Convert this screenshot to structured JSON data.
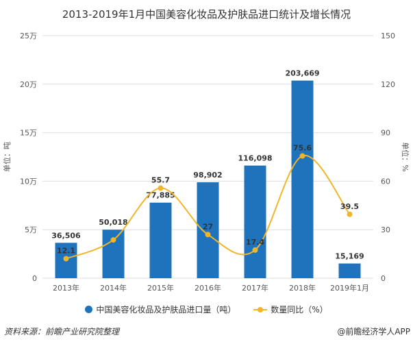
{
  "chart_data": {
    "type": "bar+line",
    "title": "2013-2019年1月中国美容化妆品及护肤品进口统计及增长情况",
    "categories": [
      "2013年",
      "2014年",
      "2015年",
      "2016年",
      "2017年",
      "2018年",
      "2019年1月"
    ],
    "series": [
      {
        "name": "中国美容化妆品及护肤品进口量（吨）",
        "type": "bar",
        "axis": "left",
        "color": "#1f73bd",
        "values": [
          36506,
          50018,
          77885,
          98902,
          116098,
          203669,
          15169
        ],
        "labels": [
          "36,506",
          "50,018",
          "77,885",
          "98,902",
          "116,098",
          "203,669",
          "15,169"
        ]
      },
      {
        "name": "数量同比（%）",
        "type": "line",
        "axis": "right",
        "color": "#f2b52a",
        "values": [
          12.1,
          23.7,
          55.7,
          27,
          17.4,
          75.6,
          39.5
        ],
        "labels": [
          "12.1",
          "",
          "55.7",
          "27",
          "17.4",
          "75.6",
          "39.5"
        ]
      }
    ],
    "ylabel_left": "单位：吨",
    "ylabel_right": "单位：%",
    "ylim_left": [
      0,
      250000
    ],
    "ylim_right": [
      0,
      150
    ],
    "left_ticks": [
      "0",
      "5万",
      "10万",
      "15万",
      "20万",
      "25万"
    ],
    "right_ticks": [
      "0",
      "30",
      "60",
      "90",
      "120",
      "150"
    ],
    "grid": true,
    "legend": "bottom"
  },
  "footer": {
    "source": "资料来源：前瞻产业研究院整理",
    "app": "@前瞻经济学人APP"
  }
}
